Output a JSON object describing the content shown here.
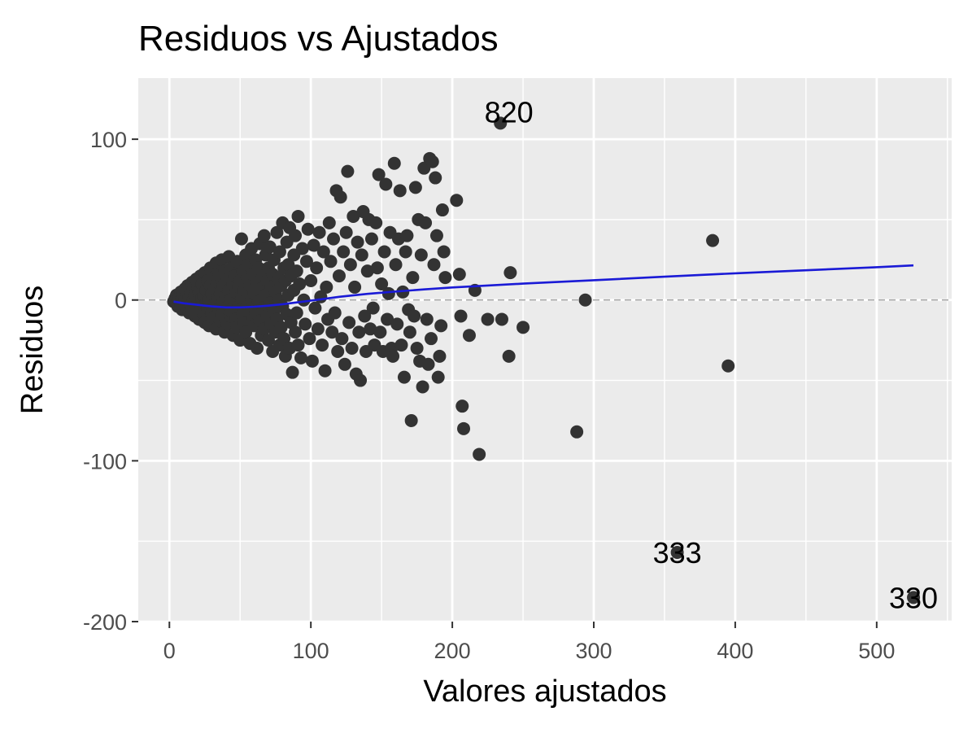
{
  "chart_data": {
    "type": "scatter",
    "title": "Residuos vs Ajustados",
    "xlabel": "Valores ajustados",
    "ylabel": "Residuos",
    "xlim": [
      -22,
      553
    ],
    "ylim": [
      -200,
      138
    ],
    "x_ticks": [
      0,
      100,
      200,
      300,
      400,
      500
    ],
    "x_tick_labels": [
      "0",
      "100",
      "200",
      "300",
      "400",
      "500"
    ],
    "y_ticks": [
      -200,
      -100,
      0,
      100
    ],
    "y_tick_labels": [
      "-200",
      "-100",
      "0",
      "100"
    ],
    "grid": true,
    "reference_line_y": 0,
    "colors": {
      "panel": "#ebebeb",
      "grid": "#ffffff",
      "points": "#333333",
      "smooth": "#1a1ad6",
      "reference": "#a6a6a6"
    },
    "points": [
      [
        3,
        -1
      ],
      [
        4,
        1
      ],
      [
        5,
        -2
      ],
      [
        5,
        3
      ],
      [
        6,
        -4
      ],
      [
        6,
        0
      ],
      [
        7,
        2
      ],
      [
        7,
        -1
      ],
      [
        8,
        5
      ],
      [
        8,
        -3
      ],
      [
        9,
        1
      ],
      [
        9,
        -6
      ],
      [
        10,
        4
      ],
      [
        10,
        -2
      ],
      [
        11,
        0
      ],
      [
        11,
        7
      ],
      [
        12,
        -5
      ],
      [
        12,
        3
      ],
      [
        13,
        -1
      ],
      [
        13,
        9
      ],
      [
        14,
        -8
      ],
      [
        14,
        2
      ],
      [
        15,
        5
      ],
      [
        15,
        -3
      ],
      [
        16,
        11
      ],
      [
        16,
        -6
      ],
      [
        17,
        0
      ],
      [
        17,
        7
      ],
      [
        18,
        -10
      ],
      [
        18,
        3
      ],
      [
        19,
        13
      ],
      [
        19,
        -4
      ],
      [
        20,
        -1
      ],
      [
        20,
        8
      ],
      [
        21,
        -12
      ],
      [
        21,
        5
      ],
      [
        22,
        15
      ],
      [
        22,
        -7
      ],
      [
        23,
        1
      ],
      [
        23,
        10
      ],
      [
        24,
        -9
      ],
      [
        24,
        3
      ],
      [
        25,
        17
      ],
      [
        25,
        -14
      ],
      [
        26,
        -2
      ],
      [
        26,
        6
      ],
      [
        27,
        12
      ],
      [
        27,
        -5
      ],
      [
        28,
        0
      ],
      [
        28,
        -16
      ],
      [
        29,
        9
      ],
      [
        29,
        20
      ],
      [
        30,
        -8
      ],
      [
        30,
        4
      ],
      [
        31,
        14
      ],
      [
        31,
        -11
      ],
      [
        32,
        -3
      ],
      [
        32,
        7
      ],
      [
        33,
        23
      ],
      [
        33,
        -18
      ],
      [
        34,
        1
      ],
      [
        34,
        11
      ],
      [
        35,
        -6
      ],
      [
        35,
        16
      ],
      [
        36,
        -13
      ],
      [
        36,
        4
      ],
      [
        37,
        25
      ],
      [
        37,
        -9
      ],
      [
        38,
        -1
      ],
      [
        38,
        9
      ],
      [
        39,
        18
      ],
      [
        39,
        -20
      ],
      [
        40,
        2
      ],
      [
        40,
        -5
      ],
      [
        41,
        13
      ],
      [
        41,
        -15
      ],
      [
        42,
        6
      ],
      [
        42,
        27
      ],
      [
        43,
        -10
      ],
      [
        43,
        0
      ],
      [
        44,
        20
      ],
      [
        44,
        -7
      ],
      [
        45,
        10
      ],
      [
        45,
        -22
      ],
      [
        46,
        -2
      ],
      [
        46,
        15
      ],
      [
        47,
        5
      ],
      [
        47,
        -12
      ],
      [
        48,
        24
      ],
      [
        48,
        -17
      ],
      [
        49,
        8
      ],
      [
        49,
        -4
      ],
      [
        50,
        -25
      ],
      [
        50,
        12
      ],
      [
        51,
        38
      ],
      [
        51,
        1
      ],
      [
        52,
        18
      ],
      [
        52,
        -9
      ],
      [
        53,
        -14
      ],
      [
        53,
        6
      ],
      [
        54,
        28
      ],
      [
        54,
        -20
      ],
      [
        55,
        -3
      ],
      [
        55,
        14
      ],
      [
        56,
        22
      ],
      [
        56,
        -6
      ],
      [
        57,
        9
      ],
      [
        57,
        -27
      ],
      [
        58,
        0
      ],
      [
        58,
        32
      ],
      [
        59,
        -11
      ],
      [
        59,
        16
      ],
      [
        60,
        4
      ],
      [
        60,
        -16
      ],
      [
        61,
        25
      ],
      [
        61,
        -8
      ],
      [
        62,
        11
      ],
      [
        62,
        -30
      ],
      [
        63,
        -1
      ],
      [
        63,
        20
      ],
      [
        64,
        35
      ],
      [
        64,
        -13
      ],
      [
        65,
        7
      ],
      [
        65,
        -22
      ],
      [
        66,
        15
      ],
      [
        66,
        -5
      ],
      [
        67,
        40
      ],
      [
        67,
        -18
      ],
      [
        68,
        3
      ],
      [
        68,
        28
      ],
      [
        69,
        -10
      ],
      [
        69,
        12
      ],
      [
        70,
        -25
      ],
      [
        70,
        20
      ],
      [
        71,
        -2
      ],
      [
        71,
        33
      ],
      [
        72,
        8
      ],
      [
        72,
        -15
      ],
      [
        73,
        -32
      ],
      [
        73,
        16
      ],
      [
        74,
        25
      ],
      [
        74,
        -7
      ],
      [
        75,
        5
      ],
      [
        75,
        -20
      ],
      [
        76,
        42
      ],
      [
        76,
        -12
      ],
      [
        77,
        14
      ],
      [
        77,
        0
      ],
      [
        78,
        -28
      ],
      [
        78,
        30
      ],
      [
        79,
        9
      ],
      [
        79,
        -17
      ],
      [
        80,
        48
      ],
      [
        80,
        -4
      ],
      [
        81,
        20
      ],
      [
        81,
        -24
      ],
      [
        82,
        -35
      ],
      [
        82,
        12
      ],
      [
        83,
        36
      ],
      [
        83,
        -9
      ],
      [
        84,
        3
      ],
      [
        84,
        22
      ],
      [
        85,
        -30
      ],
      [
        85,
        45
      ],
      [
        86,
        -14
      ],
      [
        86,
        15
      ],
      [
        87,
        -45
      ],
      [
        88,
        6
      ],
      [
        88,
        28
      ],
      [
        89,
        -20
      ],
      [
        89,
        40
      ],
      [
        90,
        -8
      ],
      [
        90,
        18
      ],
      [
        91,
        52
      ],
      [
        91,
        -28
      ],
      [
        92,
        10
      ],
      [
        93,
        -36
      ],
      [
        94,
        32
      ],
      [
        95,
        0
      ],
      [
        96,
        -15
      ],
      [
        97,
        24
      ],
      [
        98,
        44
      ],
      [
        99,
        -24
      ],
      [
        100,
        12
      ],
      [
        101,
        -38
      ],
      [
        102,
        34
      ],
      [
        103,
        -5
      ],
      [
        104,
        20
      ],
      [
        105,
        -18
      ],
      [
        106,
        42
      ],
      [
        107,
        2
      ],
      [
        108,
        -28
      ],
      [
        109,
        30
      ],
      [
        110,
        -44
      ],
      [
        111,
        8
      ],
      [
        112,
        -12
      ],
      [
        113,
        48
      ],
      [
        114,
        24
      ],
      [
        115,
        -20
      ],
      [
        116,
        38
      ],
      [
        117,
        -8
      ],
      [
        118,
        68
      ],
      [
        119,
        -32
      ],
      [
        120,
        15
      ],
      [
        121,
        64
      ],
      [
        122,
        -24
      ],
      [
        123,
        30
      ],
      [
        124,
        -40
      ],
      [
        125,
        42
      ],
      [
        126,
        80
      ],
      [
        127,
        -14
      ],
      [
        128,
        22
      ],
      [
        129,
        -30
      ],
      [
        130,
        52
      ],
      [
        131,
        8
      ],
      [
        132,
        -46
      ],
      [
        133,
        36
      ],
      [
        134,
        -20
      ],
      [
        135,
        -50
      ],
      [
        136,
        28
      ],
      [
        137,
        55
      ],
      [
        138,
        -10
      ],
      [
        139,
        -32
      ],
      [
        140,
        18
      ],
      [
        141,
        50
      ],
      [
        142,
        -18
      ],
      [
        143,
        38
      ],
      [
        144,
        -5
      ],
      [
        145,
        -28
      ],
      [
        146,
        48
      ],
      [
        147,
        20
      ],
      [
        148,
        78
      ],
      [
        149,
        -20
      ],
      [
        150,
        10
      ],
      [
        151,
        -32
      ],
      [
        152,
        30
      ],
      [
        153,
        72
      ],
      [
        154,
        -12
      ],
      [
        155,
        4
      ],
      [
        156,
        42
      ],
      [
        157,
        -30
      ],
      [
        158,
        -35
      ],
      [
        159,
        85
      ],
      [
        160,
        22
      ],
      [
        161,
        -15
      ],
      [
        162,
        38
      ],
      [
        163,
        68
      ],
      [
        164,
        -28
      ],
      [
        165,
        5
      ],
      [
        166,
        -48
      ],
      [
        167,
        30
      ],
      [
        168,
        40
      ],
      [
        169,
        -6
      ],
      [
        170,
        -20
      ],
      [
        171,
        -75
      ],
      [
        172,
        14
      ],
      [
        173,
        -10
      ],
      [
        174,
        70
      ],
      [
        175,
        -30
      ],
      [
        176,
        50
      ],
      [
        177,
        -38
      ],
      [
        178,
        28
      ],
      [
        179,
        -54
      ],
      [
        180,
        82
      ],
      [
        181,
        48
      ],
      [
        182,
        -12
      ],
      [
        183,
        -40
      ],
      [
        184,
        88
      ],
      [
        185,
        -24
      ],
      [
        186,
        86
      ],
      [
        187,
        22
      ],
      [
        188,
        76
      ],
      [
        189,
        40
      ],
      [
        190,
        -48
      ],
      [
        191,
        -35
      ],
      [
        192,
        -16
      ],
      [
        193,
        56
      ],
      [
        194,
        30
      ],
      [
        195,
        14
      ],
      [
        203,
        62
      ],
      [
        205,
        16
      ],
      [
        206,
        -10
      ],
      [
        207,
        -66
      ],
      [
        208,
        -80
      ],
      [
        212,
        -22
      ],
      [
        216,
        6
      ],
      [
        219,
        -96
      ],
      [
        225,
        -12
      ],
      [
        234,
        110
      ],
      [
        235,
        -12
      ],
      [
        240,
        -35
      ],
      [
        241,
        17
      ],
      [
        250,
        -17
      ],
      [
        288,
        -82
      ],
      [
        294,
        0
      ],
      [
        359,
        -157
      ],
      [
        384,
        37
      ],
      [
        395,
        -41
      ],
      [
        526,
        -185
      ]
    ],
    "labeled_points": [
      {
        "label": "820",
        "x": 240,
        "y": 117
      },
      {
        "label": "333",
        "x": 359,
        "y": -157
      },
      {
        "label": "330",
        "x": 526,
        "y": -185
      }
    ],
    "smooth_line": [
      [
        3,
        -1
      ],
      [
        10,
        -2
      ],
      [
        20,
        -3
      ],
      [
        30,
        -4
      ],
      [
        40,
        -4.6
      ],
      [
        50,
        -4.6
      ],
      [
        60,
        -4.2
      ],
      [
        70,
        -3.5
      ],
      [
        80,
        -2.6
      ],
      [
        90,
        -1.5
      ],
      [
        100,
        -0.4
      ],
      [
        110,
        0.8
      ],
      [
        120,
        2
      ],
      [
        140,
        3.8
      ],
      [
        160,
        5.3
      ],
      [
        180,
        6.6
      ],
      [
        200,
        7.8
      ],
      [
        250,
        10.2
      ],
      [
        300,
        12.3
      ],
      [
        350,
        14.5
      ],
      [
        400,
        16.6
      ],
      [
        450,
        18.5
      ],
      [
        500,
        20.4
      ],
      [
        526,
        21.5
      ]
    ]
  }
}
